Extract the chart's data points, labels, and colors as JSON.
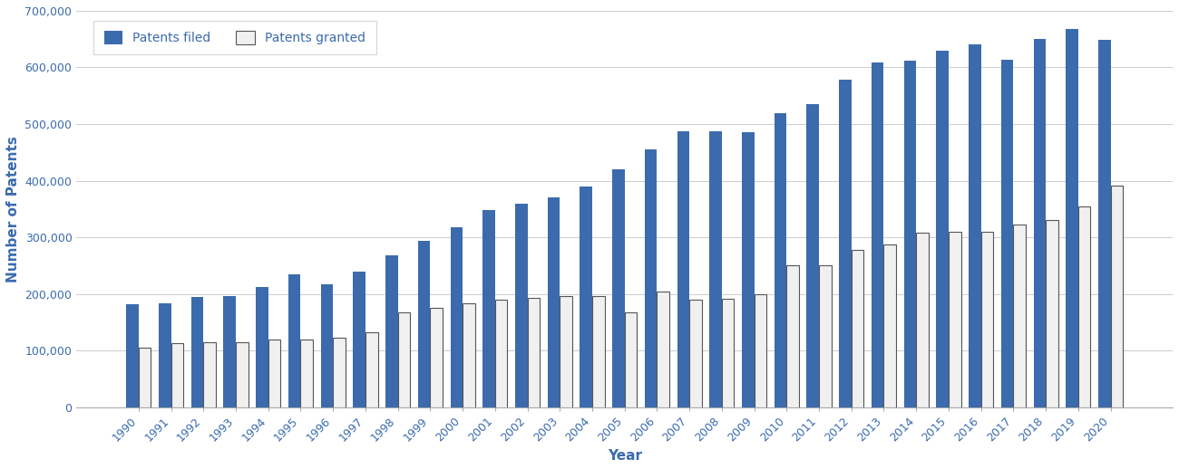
{
  "years": [
    1990,
    1991,
    1992,
    1993,
    1994,
    1995,
    1996,
    1997,
    1998,
    1999,
    2000,
    2001,
    2002,
    2003,
    2004,
    2005,
    2006,
    2007,
    2008,
    2009,
    2010,
    2011,
    2012,
    2013,
    2014,
    2015,
    2016,
    2017,
    2018,
    2019,
    2020
  ],
  "patents_filed": [
    182000,
    184000,
    194000,
    196000,
    212000,
    235000,
    217000,
    240000,
    268000,
    293000,
    318000,
    348000,
    360000,
    370000,
    390000,
    420000,
    455000,
    487000,
    487000,
    485000,
    520000,
    535000,
    578000,
    608000,
    612000,
    630000,
    640000,
    613000,
    650000,
    668000,
    648000
  ],
  "patents_granted": [
    105000,
    113000,
    115000,
    115000,
    120000,
    120000,
    122000,
    132000,
    168000,
    175000,
    183000,
    190000,
    193000,
    197000,
    196000,
    168000,
    205000,
    190000,
    192000,
    200000,
    250000,
    250000,
    278000,
    287000,
    308000,
    310000,
    310000,
    323000,
    330000,
    354000,
    392000
  ],
  "filed_color": "#3B6BAD",
  "granted_color": "#F0F0F0",
  "granted_edge_color": "#555555",
  "ylabel": "Number of Patents",
  "xlabel": "Year",
  "ylim": [
    0,
    700000
  ],
  "yticks": [
    0,
    100000,
    200000,
    300000,
    400000,
    500000,
    600000,
    700000
  ],
  "background_color": "#FFFFFF",
  "grid_color": "#CCCCCC",
  "bar_width": 0.38
}
